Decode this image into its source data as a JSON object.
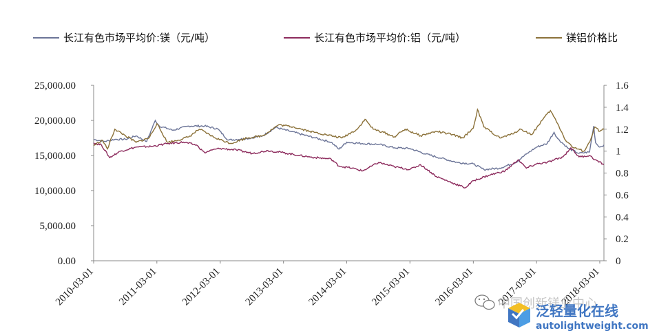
{
  "chart_data": {
    "type": "line",
    "title": "",
    "xlabel": "",
    "ylabel": "",
    "x_ticks": [
      "2010-03-01",
      "2011-03-01",
      "2012-03-01",
      "2013-03-01",
      "2014-03-01",
      "2015-03-01",
      "2016-03-01",
      "2017-03-01",
      "2018-03-01"
    ],
    "y_left": {
      "range": [
        0,
        25000
      ],
      "ticks": [
        "0.00",
        "5,000.00",
        "10,000.00",
        "15,000.00",
        "20,000.00",
        "25,000.00"
      ],
      "tick_values": [
        0,
        5000,
        10000,
        15000,
        20000,
        25000
      ]
    },
    "y_right": {
      "range": [
        0,
        1.6
      ],
      "ticks": [
        "0",
        "0.2",
        "0.4",
        "0.6",
        "0.8",
        "1",
        "1.2",
        "1.4",
        "1.6"
      ],
      "tick_values": [
        0,
        0.2,
        0.4,
        0.6,
        0.8,
        1,
        1.2,
        1.4,
        1.6
      ]
    },
    "x_range": [
      "2010-03-01",
      "2018-03-25"
    ],
    "grid": false,
    "legend_position": "top",
    "series": [
      {
        "name": "长江有色市场平均价:镁（元/吨）",
        "axis": "left",
        "color": "#6b7497",
        "points": [
          [
            "2010-03-01",
            17300
          ],
          [
            "2010-05-01",
            17000
          ],
          [
            "2010-07-01",
            17300
          ],
          [
            "2010-09-01",
            17300
          ],
          [
            "2010-11-01",
            17800
          ],
          [
            "2011-01-01",
            17000
          ],
          [
            "2011-02-20",
            20000
          ],
          [
            "2011-03-15",
            19200
          ],
          [
            "2011-06-01",
            18600
          ],
          [
            "2011-09-01",
            19200
          ],
          [
            "2011-12-01",
            19200
          ],
          [
            "2012-02-15",
            18800
          ],
          [
            "2012-04-15",
            17200
          ],
          [
            "2012-08-01",
            17400
          ],
          [
            "2012-11-01",
            17800
          ],
          [
            "2013-01-15",
            19000
          ],
          [
            "2013-04-15",
            18400
          ],
          [
            "2013-09-01",
            17500
          ],
          [
            "2013-12-01",
            16900
          ],
          [
            "2014-01-15",
            15900
          ],
          [
            "2014-03-01",
            16900
          ],
          [
            "2014-06-01",
            16700
          ],
          [
            "2014-09-01",
            16600
          ],
          [
            "2014-12-01",
            16100
          ],
          [
            "2015-03-01",
            16000
          ],
          [
            "2015-06-01",
            15200
          ],
          [
            "2015-09-01",
            14600
          ],
          [
            "2015-12-01",
            14000
          ],
          [
            "2016-03-01",
            13800
          ],
          [
            "2016-05-01",
            13000
          ],
          [
            "2016-08-01",
            13200
          ],
          [
            "2016-11-01",
            14000
          ],
          [
            "2017-01-01",
            15200
          ],
          [
            "2017-03-01",
            16200
          ],
          [
            "2017-05-01",
            16700
          ],
          [
            "2017-06-10",
            18300
          ],
          [
            "2017-07-01",
            17400
          ],
          [
            "2017-09-01",
            16000
          ],
          [
            "2017-11-01",
            15300
          ],
          [
            "2018-01-01",
            15500
          ],
          [
            "2018-01-25",
            19200
          ],
          [
            "2018-02-05",
            16800
          ],
          [
            "2018-03-01",
            16200
          ],
          [
            "2018-03-25",
            16500
          ]
        ]
      },
      {
        "name": "长江有色市场平均价:铝（元/吨）",
        "axis": "left",
        "color": "#8c2a5c",
        "points": [
          [
            "2010-03-01",
            16800
          ],
          [
            "2010-04-15",
            16500
          ],
          [
            "2010-06-01",
            14700
          ],
          [
            "2010-08-01",
            15600
          ],
          [
            "2010-11-01",
            16200
          ],
          [
            "2011-02-01",
            16300
          ],
          [
            "2011-05-01",
            16700
          ],
          [
            "2011-08-01",
            16900
          ],
          [
            "2011-10-15",
            16500
          ],
          [
            "2011-12-01",
            15400
          ],
          [
            "2012-02-01",
            15900
          ],
          [
            "2012-03-01",
            16000
          ],
          [
            "2012-06-01",
            15800
          ],
          [
            "2012-09-01",
            15300
          ],
          [
            "2012-12-01",
            15700
          ],
          [
            "2013-03-01",
            15400
          ],
          [
            "2013-06-01",
            15000
          ],
          [
            "2013-09-01",
            14700
          ],
          [
            "2013-12-01",
            14500
          ],
          [
            "2014-01-15",
            13500
          ],
          [
            "2014-04-01",
            13200
          ],
          [
            "2014-06-01",
            12800
          ],
          [
            "2014-09-01",
            14000
          ],
          [
            "2014-12-01",
            13400
          ],
          [
            "2015-03-01",
            13000
          ],
          [
            "2015-05-01",
            13700
          ],
          [
            "2015-08-01",
            12000
          ],
          [
            "2015-11-01",
            11100
          ],
          [
            "2016-01-15",
            10400
          ],
          [
            "2016-03-01",
            11400
          ],
          [
            "2016-06-01",
            12200
          ],
          [
            "2016-09-01",
            12800
          ],
          [
            "2016-11-15",
            14400
          ],
          [
            "2017-01-01",
            13200
          ],
          [
            "2017-03-01",
            13800
          ],
          [
            "2017-05-01",
            14000
          ],
          [
            "2017-08-01",
            14800
          ],
          [
            "2017-09-15",
            16100
          ],
          [
            "2017-11-01",
            14800
          ],
          [
            "2018-01-01",
            15000
          ],
          [
            "2018-02-01",
            14400
          ],
          [
            "2018-03-25",
            13700
          ]
        ]
      },
      {
        "name": "镁铝价格比",
        "axis": "right",
        "color": "#8b7139",
        "points": [
          [
            "2010-03-01",
            1.05
          ],
          [
            "2010-04-20",
            1.1
          ],
          [
            "2010-05-20",
            1.02
          ],
          [
            "2010-07-01",
            1.2
          ],
          [
            "2010-09-01",
            1.14
          ],
          [
            "2010-11-01",
            1.08
          ],
          [
            "2011-01-15",
            1.12
          ],
          [
            "2011-03-01",
            1.25
          ],
          [
            "2011-05-01",
            1.08
          ],
          [
            "2011-07-01",
            1.1
          ],
          [
            "2011-09-01",
            1.13
          ],
          [
            "2011-11-01",
            1.2
          ],
          [
            "2012-02-01",
            1.12
          ],
          [
            "2012-05-01",
            1.07
          ],
          [
            "2012-08-01",
            1.12
          ],
          [
            "2012-11-01",
            1.14
          ],
          [
            "2013-02-01",
            1.24
          ],
          [
            "2013-05-01",
            1.22
          ],
          [
            "2013-08-01",
            1.18
          ],
          [
            "2013-11-01",
            1.15
          ],
          [
            "2014-02-01",
            1.12
          ],
          [
            "2014-05-01",
            1.2
          ],
          [
            "2014-06-15",
            1.29
          ],
          [
            "2014-08-01",
            1.2
          ],
          [
            "2014-10-01",
            1.17
          ],
          [
            "2014-12-01",
            1.13
          ],
          [
            "2015-02-01",
            1.2
          ],
          [
            "2015-05-01",
            1.14
          ],
          [
            "2015-08-01",
            1.18
          ],
          [
            "2015-11-01",
            1.15
          ],
          [
            "2016-01-01",
            1.12
          ],
          [
            "2016-03-01",
            1.21
          ],
          [
            "2016-03-25",
            1.38
          ],
          [
            "2016-05-01",
            1.22
          ],
          [
            "2016-08-01",
            1.12
          ],
          [
            "2016-10-01",
            1.15
          ],
          [
            "2016-12-01",
            1.2
          ],
          [
            "2017-02-01",
            1.15
          ],
          [
            "2017-04-01",
            1.28
          ],
          [
            "2017-05-20",
            1.37
          ],
          [
            "2017-07-01",
            1.25
          ],
          [
            "2017-08-15",
            1.1
          ],
          [
            "2017-10-01",
            1.03
          ],
          [
            "2017-12-01",
            1.0
          ],
          [
            "2018-01-01",
            1.08
          ],
          [
            "2018-02-01",
            1.22
          ],
          [
            "2018-03-01",
            1.18
          ],
          [
            "2018-03-25",
            1.2
          ]
        ]
      }
    ]
  },
  "legend": [
    {
      "label": "长江有色市场平均价:镁（元/吨）",
      "color": "#6b7497"
    },
    {
      "label": "长江有色市场平均价:铝（元/吨）",
      "color": "#8c2a5c"
    },
    {
      "label": "镁铝价格比",
      "color": "#8b7139"
    }
  ],
  "watermark": {
    "wechat_text": "中国创新镁业中心",
    "logo_text": "泛轻量化在线",
    "url_text": "autolightweight.com"
  }
}
